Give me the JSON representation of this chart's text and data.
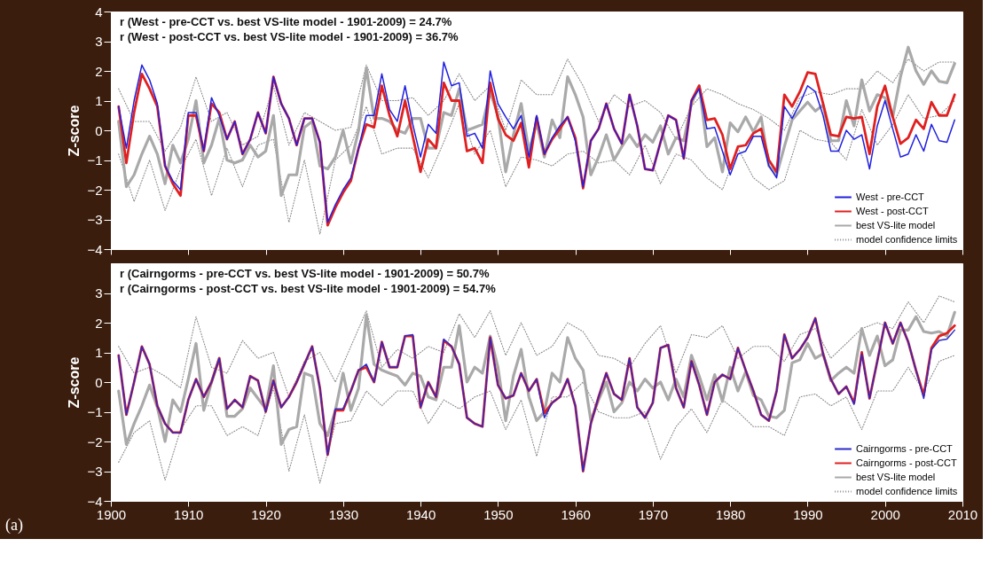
{
  "chart_data": [
    {
      "type": "line",
      "ylabel": "Z-score",
      "xlim": [
        1900,
        2010
      ],
      "xticks": [
        1900,
        1910,
        1920,
        1930,
        1940,
        1950,
        1960,
        1970,
        1980,
        1990,
        2000,
        2010
      ],
      "ylim": [
        -4,
        4
      ],
      "yticks": [
        -4,
        -3,
        -2,
        -1,
        0,
        1,
        2,
        3,
        4
      ],
      "tick_labels": "y",
      "legend": "bottom right",
      "grid": false,
      "annotations": [
        "r (West - pre-CCT vs. best VS-lite model - 1901-2009) = 24.7%",
        "r (West - post-CCT vs. best VS-lite model - 1901-2009) = 36.7%"
      ],
      "x": [
        1901,
        1902,
        1903,
        1904,
        1905,
        1906,
        1907,
        1908,
        1909,
        1910,
        1911,
        1912,
        1913,
        1914,
        1915,
        1916,
        1917,
        1918,
        1919,
        1920,
        1921,
        1922,
        1923,
        1924,
        1925,
        1926,
        1927,
        1928,
        1929,
        1930,
        1931,
        1932,
        1933,
        1934,
        1935,
        1936,
        1937,
        1938,
        1939,
        1940,
        1941,
        1942,
        1943,
        1944,
        1945,
        1946,
        1947,
        1948,
        1949,
        1950,
        1951,
        1952,
        1953,
        1954,
        1955,
        1956,
        1957,
        1958,
        1959,
        1960,
        1961,
        1962,
        1963,
        1964,
        1965,
        1966,
        1967,
        1968,
        1969,
        1970,
        1971,
        1972,
        1973,
        1974,
        1975,
        1976,
        1977,
        1978,
        1979,
        1980,
        1981,
        1982,
        1983,
        1984,
        1985,
        1986,
        1987,
        1988,
        1989,
        1990,
        1991,
        1992,
        1993,
        1994,
        1995,
        1996,
        1997,
        1998,
        1999,
        2000,
        2001,
        2002,
        2003,
        2004,
        2005,
        2006,
        2007,
        2008,
        2009
      ],
      "series": [
        {
          "name": "model confidence limits",
          "color": "#8a8a8a",
          "line_style": "dotted",
          "x": [
            1901,
            1903,
            1905,
            1907,
            1909,
            1911,
            1913,
            1915,
            1917,
            1919,
            1921,
            1923,
            1925,
            1927,
            1929,
            1931,
            1933,
            1935,
            1937,
            1939,
            1941,
            1943,
            1945,
            1947,
            1949,
            1951,
            1953,
            1955,
            1957,
            1959,
            1961,
            1963,
            1965,
            1967,
            1969,
            1971,
            1973,
            1975,
            1977,
            1979,
            1981,
            1983,
            1985,
            1987,
            1989,
            1991,
            1993,
            1995,
            1997,
            1999,
            2001,
            2003,
            2005,
            2007,
            2009
          ],
          "values": [
            1.4,
            0.3,
            0.3,
            -0.7,
            0.1,
            1.8,
            0.3,
            0.6,
            -0.5,
            -0.2,
            1.5,
            -0.5,
            0.6,
            0.3,
            0.0,
            0.1,
            2.2,
            1.0,
            1.0,
            1.1,
            0.5,
            1.0,
            1.9,
            1.0,
            1.5,
            0.0,
            1.7,
            1.2,
            1.2,
            2.4,
            1.5,
            0.3,
            1.2,
            0.8,
            1.0,
            0.6,
            -0.3,
            0.8,
            1.4,
            1.2,
            0.9,
            0.7,
            0.4,
            0.0,
            1.1,
            1.3,
            1.2,
            1.4,
            1.4,
            2.0,
            1.6,
            2.4,
            2.0,
            2.3,
            2.3
          ]
        },
        {
          "color": "#8a8a8a",
          "line_style": "dotted",
          "x": [
            1901,
            1903,
            1905,
            1907,
            1909,
            1911,
            1913,
            1915,
            1917,
            1919,
            1921,
            1923,
            1925,
            1927,
            1929,
            1931,
            1933,
            1935,
            1937,
            1939,
            1941,
            1943,
            1945,
            1947,
            1949,
            1951,
            1953,
            1955,
            1957,
            1959,
            1961,
            1963,
            1965,
            1967,
            1969,
            1971,
            1973,
            1975,
            1977,
            1979,
            1981,
            1983,
            1985,
            1987,
            1989,
            1991,
            1993,
            1995,
            1997,
            1999,
            2001,
            2003,
            2005,
            2007,
            2009
          ],
          "values": [
            -0.8,
            -2.4,
            -1.0,
            -2.7,
            -1.3,
            -0.3,
            -2.2,
            -0.6,
            -1.9,
            -0.5,
            -0.3,
            -3.1,
            -1.0,
            -3.5,
            -1.0,
            -0.5,
            0.8,
            -0.8,
            -0.6,
            -0.6,
            -1.6,
            -0.4,
            0.9,
            -0.8,
            0.0,
            -1.9,
            -0.9,
            -1.0,
            -1.2,
            -0.8,
            -0.7,
            -1.1,
            -1.0,
            -1.5,
            -0.5,
            -1.8,
            -0.8,
            -1.0,
            -1.6,
            -2.0,
            -0.6,
            -1.6,
            -2.0,
            -1.7,
            0.0,
            -0.3,
            -0.4,
            -1.0,
            0.7,
            -0.5,
            0.2,
            1.2,
            0.4,
            0.5,
            1.0
          ]
        },
        {
          "name": "best VS-lite model",
          "color": "#a9a9a9",
          "values": [
            0.3,
            -1.9,
            -1.5,
            -0.8,
            -0.2,
            -0.8,
            -1.8,
            -0.5,
            -1.1,
            -0.3,
            1.0,
            -1.1,
            -0.5,
            0.4,
            -1.0,
            -1.1,
            -1.0,
            -0.5,
            -0.9,
            -0.7,
            0.5,
            -2.2,
            -1.5,
            -1.5,
            0.1,
            0.3,
            -1.2,
            -1.3,
            -0.9,
            0.0,
            -1.1,
            0.0,
            2.1,
            0.4,
            0.4,
            0.3,
            0.0,
            -0.1,
            0.4,
            0.4,
            -0.6,
            -0.6,
            0.6,
            0.5,
            1.4,
            0.0,
            0.1,
            0.2,
            1.3,
            0.5,
            -1.4,
            -0.15,
            0.9,
            -0.7,
            0.25,
            -0.9,
            0.35,
            -0.25,
            1.8,
            1.2,
            0.45,
            -1.5,
            -0.9,
            -0.15,
            -1.0,
            -0.55,
            -0.15,
            -0.55,
            -0.15,
            -0.4,
            0.15,
            -0.8,
            -0.25,
            -0.35,
            0.9,
            1.5,
            -0.55,
            -0.25,
            -1.4,
            0.25,
            -0.05,
            0.45,
            -0.05,
            0.45,
            -1.2,
            -1.5,
            -0.55,
            0.35,
            0.65,
            0.95,
            0.65,
            0.85,
            -0.35,
            -0.35,
            1.0,
            0.15,
            1.7,
            0.65,
            1.2,
            1.1,
            0.45,
            1.8,
            2.8,
            2.0,
            1.55,
            2.0,
            1.65,
            1.6,
            2.25
          ]
        },
        {
          "name": "West - post-CCT",
          "color": "#e02020",
          "values": [
            0.8,
            -1.1,
            0.6,
            1.9,
            1.4,
            0.8,
            -1.2,
            -1.8,
            -2.2,
            0.5,
            0.5,
            -0.7,
            0.9,
            0.6,
            -0.3,
            0.3,
            -0.8,
            -0.3,
            0.6,
            -0.1,
            1.8,
            0.9,
            0.4,
            -0.5,
            0.4,
            0.4,
            -0.4,
            -3.2,
            -2.6,
            -2.1,
            -1.7,
            -0.6,
            0.2,
            0.1,
            1.5,
            0.5,
            -0.2,
            1.0,
            -0.2,
            -1.4,
            -0.3,
            -0.6,
            1.6,
            1.0,
            1.0,
            -0.7,
            -0.6,
            -1.1,
            1.6,
            0.4,
            -0.15,
            -0.35,
            0.25,
            -1.25,
            0.45,
            -0.8,
            -0.3,
            0.05,
            0.45,
            -0.25,
            -1.95,
            -0.35,
            0.05,
            0.9,
            0.05,
            -0.45,
            1.2,
            0.15,
            -1.3,
            -1.35,
            -0.4,
            0.5,
            0.35,
            -0.95,
            1.0,
            1.5,
            0.35,
            0.4,
            -0.15,
            -1.3,
            -0.55,
            -0.5,
            -0.1,
            0.05,
            -1.0,
            -1.4,
            1.2,
            0.8,
            1.3,
            1.95,
            1.9,
            0.9,
            -0.15,
            -0.2,
            0.45,
            0.4,
            0.45,
            -0.8,
            0.8,
            1.5,
            0.45,
            -0.45,
            -0.25,
            0.35,
            0.05,
            0.95,
            0.5,
            0.5,
            1.2
          ]
        },
        {
          "name": "West - pre-CCT",
          "color": "#2020e0",
          "values": [
            0.8,
            -0.6,
            1.0,
            2.2,
            1.7,
            0.9,
            -1.2,
            -1.7,
            -2.0,
            0.6,
            0.6,
            -0.7,
            1.1,
            0.5,
            -0.3,
            0.3,
            -0.8,
            -0.3,
            0.6,
            -0.1,
            1.8,
            0.9,
            0.4,
            -0.5,
            0.4,
            0.4,
            -0.4,
            -3.1,
            -2.5,
            -2.0,
            -1.6,
            -0.6,
            0.5,
            0.5,
            1.9,
            0.7,
            0.3,
            1.5,
            0.2,
            -0.9,
            0.2,
            -0.1,
            2.3,
            1.5,
            1.6,
            -0.2,
            -0.1,
            -0.6,
            2.0,
            0.9,
            0.45,
            0.05,
            0.5,
            -0.9,
            0.5,
            -0.8,
            -0.25,
            0.15,
            0.45,
            -0.35,
            -1.9,
            -0.35,
            0.05,
            0.9,
            0.05,
            -0.45,
            1.2,
            0.15,
            -1.3,
            -1.35,
            -0.4,
            0.5,
            0.35,
            -0.95,
            1.0,
            1.4,
            0.05,
            0.1,
            -0.7,
            -1.5,
            -0.8,
            -0.7,
            -0.2,
            -0.2,
            -1.2,
            -1.6,
            0.8,
            0.4,
            0.9,
            1.5,
            1.3,
            0.5,
            -0.7,
            -0.7,
            0.0,
            -0.3,
            -0.15,
            -1.3,
            0.15,
            1.0,
            0.05,
            -0.9,
            -0.8,
            -0.15,
            -0.7,
            0.2,
            -0.35,
            -0.4,
            0.35
          ]
        }
      ]
    },
    {
      "type": "line",
      "title": "(a)",
      "ylabel": "Z-score",
      "xlim": [
        1900,
        2010
      ],
      "xticks": [
        1900,
        1910,
        1920,
        1930,
        1940,
        1950,
        1960,
        1970,
        1980,
        1990,
        2000,
        2010
      ],
      "ylim": [
        -4,
        4
      ],
      "yticks": [
        -4,
        -3,
        -2,
        -1,
        0,
        1,
        2,
        3
      ],
      "legend": "bottom right",
      "grid": false,
      "annotations": [
        "r (Cairngorms - pre-CCT vs. best VS-lite model - 1901-2009) = 50.7%",
        "r (Cairngorms - post-CCT vs. best VS-lite model - 1901-2009) = 54.7%"
      ],
      "x": [
        1901,
        1902,
        1903,
        1904,
        1905,
        1906,
        1907,
        1908,
        1909,
        1910,
        1911,
        1912,
        1913,
        1914,
        1915,
        1916,
        1917,
        1918,
        1919,
        1920,
        1921,
        1922,
        1923,
        1924,
        1925,
        1926,
        1927,
        1928,
        1929,
        1930,
        1931,
        1932,
        1933,
        1934,
        1935,
        1936,
        1937,
        1938,
        1939,
        1940,
        1941,
        1942,
        1943,
        1944,
        1945,
        1946,
        1947,
        1948,
        1949,
        1950,
        1951,
        1952,
        1953,
        1954,
        1955,
        1956,
        1957,
        1958,
        1959,
        1960,
        1961,
        1962,
        1963,
        1964,
        1965,
        1966,
        1967,
        1968,
        1969,
        1970,
        1971,
        1972,
        1973,
        1974,
        1975,
        1976,
        1977,
        1978,
        1979,
        1980,
        1981,
        1982,
        1983,
        1984,
        1985,
        1986,
        1987,
        1988,
        1989,
        1990,
        1991,
        1992,
        1993,
        1994,
        1995,
        1996,
        1997,
        1998,
        1999,
        2000,
        2001,
        2002,
        2003,
        2004,
        2005,
        2006,
        2007,
        2008,
        2009
      ],
      "series": [
        {
          "name": "model confidence limits",
          "color": "#8a8a8a",
          "line_style": "dotted",
          "x": [
            1901,
            1903,
            1905,
            1907,
            1909,
            1911,
            1913,
            1915,
            1917,
            1919,
            1921,
            1923,
            1925,
            1927,
            1929,
            1931,
            1933,
            1935,
            1937,
            1939,
            1941,
            1943,
            1945,
            1947,
            1949,
            1951,
            1953,
            1955,
            1957,
            1959,
            1961,
            1963,
            1965,
            1967,
            1969,
            1971,
            1973,
            1975,
            1977,
            1979,
            1981,
            1983,
            1985,
            1987,
            1989,
            1991,
            1993,
            1995,
            1997,
            1999,
            2001,
            2003,
            2005,
            2007,
            2009
          ],
          "values": [
            1.2,
            0.3,
            0.5,
            0.2,
            -0.2,
            2.2,
            0.5,
            0.3,
            1.4,
            0.8,
            1.0,
            -0.5,
            0.7,
            1.0,
            0.0,
            1.2,
            2.4,
            0.5,
            1.1,
            0.8,
            1.2,
            1.0,
            2.3,
            1.5,
            2.4,
            0.9,
            2.0,
            0.9,
            1.2,
            2.0,
            1.7,
            0.9,
            0.8,
            0.5,
            1.3,
            1.9,
            0.3,
            1.6,
            1.5,
            1.9,
            0.8,
            1.2,
            1.2,
            0.7,
            1.6,
            1.8,
            0.8,
            1.3,
            1.8,
            2.0,
            1.8,
            2.7,
            2.0,
            2.9,
            2.7
          ]
        },
        {
          "color": "#8a8a8a",
          "line_style": "dotted",
          "x": [
            1901,
            1903,
            1905,
            1907,
            1909,
            1911,
            1913,
            1915,
            1917,
            1919,
            1921,
            1923,
            1925,
            1927,
            1929,
            1931,
            1933,
            1935,
            1937,
            1939,
            1941,
            1943,
            1945,
            1947,
            1949,
            1951,
            1953,
            1955,
            1957,
            1959,
            1961,
            1963,
            1965,
            1967,
            1969,
            1971,
            1973,
            1975,
            1977,
            1979,
            1981,
            1983,
            1985,
            1987,
            1989,
            1991,
            1993,
            1995,
            1997,
            1999,
            2001,
            2003,
            2005,
            2007,
            2009
          ],
          "values": [
            -2.7,
            -1.7,
            -1.3,
            -3.3,
            -1.6,
            -0.8,
            -0.8,
            -1.8,
            -1.5,
            -1.8,
            -0.2,
            -3.0,
            -1.1,
            -3.4,
            -1.4,
            -1.3,
            -0.3,
            -0.8,
            -0.3,
            -0.3,
            -1.4,
            -0.6,
            -0.9,
            -0.5,
            -0.3,
            -1.6,
            -0.6,
            -2.5,
            -0.5,
            -0.5,
            0.0,
            -1.0,
            -1.2,
            -1.2,
            -1.0,
            -2.6,
            -1.5,
            -0.9,
            -1.7,
            -0.6,
            -1.0,
            -1.5,
            -1.5,
            -1.8,
            -0.5,
            -0.4,
            -0.8,
            -0.5,
            -1.6,
            -0.3,
            -0.3,
            0.5,
            -0.3,
            0.7,
            0.9
          ]
        },
        {
          "name": "best VS-lite model",
          "color": "#a9a9a9",
          "values": [
            -0.3,
            -2.1,
            -1.4,
            -0.8,
            -0.1,
            -0.85,
            -2.0,
            -0.6,
            -1.0,
            0.1,
            1.3,
            -0.95,
            0.0,
            0.8,
            -1.15,
            -1.15,
            -0.9,
            -0.2,
            -0.55,
            -0.9,
            0.55,
            -2.1,
            -1.6,
            -1.5,
            0.3,
            0.2,
            -1.4,
            -1.8,
            -0.95,
            0.3,
            -0.95,
            -0.2,
            2.25,
            0.6,
            0.4,
            0.3,
            0.2,
            -0.1,
            0.3,
            0.2,
            -0.5,
            -0.6,
            0.5,
            0.5,
            1.9,
            0.0,
            0.5,
            0.3,
            1.55,
            0.5,
            -1.3,
            0.2,
            1.1,
            -0.5,
            -1.3,
            -1.0,
            0.3,
            0.0,
            1.5,
            0.8,
            0.4,
            -1.3,
            -0.6,
            0.0,
            -1.0,
            -0.7,
            0.0,
            -0.3,
            0.1,
            -0.2,
            0.0,
            -0.6,
            0.1,
            -0.5,
            0.9,
            0.2,
            -0.6,
            0.25,
            -0.65,
            0.5,
            -0.3,
            0.35,
            -0.45,
            -0.6,
            -1.15,
            -1.2,
            -0.95,
            0.65,
            0.75,
            1.3,
            0.8,
            0.95,
            0.05,
            0.3,
            0.5,
            0.3,
            1.8,
            0.9,
            1.55,
            0.55,
            0.75,
            1.75,
            1.75,
            2.2,
            1.7,
            1.65,
            1.7,
            1.55,
            2.35
          ]
        },
        {
          "name": "Cairngorms - post-CCT",
          "color": "#e02020",
          "values": [
            0.9,
            -1.1,
            0.0,
            1.2,
            0.6,
            -0.8,
            -1.4,
            -1.7,
            -1.7,
            -0.6,
            0.1,
            -0.5,
            0.0,
            0.8,
            -0.9,
            -0.6,
            -0.85,
            0.2,
            0.05,
            -1.0,
            0.05,
            -0.85,
            -0.5,
            0.0,
            0.6,
            1.2,
            -0.2,
            -2.45,
            -0.95,
            -0.95,
            -0.3,
            0.4,
            0.5,
            0.0,
            1.35,
            0.5,
            0.5,
            1.55,
            1.55,
            -0.85,
            0.0,
            -0.5,
            1.4,
            1.2,
            0.6,
            -1.2,
            -1.4,
            -1.5,
            1.5,
            -0.1,
            -0.55,
            -0.45,
            0.3,
            -0.3,
            0.1,
            -1.05,
            -0.7,
            -0.5,
            0.1,
            -0.8,
            -3.0,
            -1.4,
            -0.5,
            0.3,
            -0.4,
            -0.6,
            0.8,
            -0.85,
            -1.2,
            -0.7,
            1.15,
            1.25,
            -0.2,
            -0.85,
            0.7,
            -0.1,
            -1.1,
            0.0,
            0.25,
            0.1,
            1.15,
            0.4,
            -0.3,
            -1.1,
            -1.3,
            -0.3,
            1.6,
            0.8,
            1.1,
            1.5,
            2.15,
            0.95,
            0.1,
            -0.4,
            -0.15,
            -0.7,
            1.0,
            -0.55,
            0.7,
            2.0,
            1.3,
            2.0,
            1.35,
            0.4,
            -0.45,
            1.15,
            1.55,
            1.65,
            1.9
          ]
        },
        {
          "name": "Cairngorms - pre-CCT",
          "color": "#2a2ac8",
          "values": [
            0.9,
            -1.1,
            0.0,
            1.2,
            0.6,
            -0.8,
            -1.4,
            -1.7,
            -1.7,
            -0.6,
            0.1,
            -0.5,
            0.0,
            0.8,
            -0.9,
            -0.6,
            -0.85,
            0.2,
            0.05,
            -1.0,
            0.05,
            -0.85,
            -0.5,
            0.0,
            0.6,
            1.2,
            -0.2,
            -2.45,
            -0.9,
            -0.9,
            -0.3,
            0.4,
            0.6,
            0.0,
            1.35,
            0.5,
            0.5,
            1.55,
            1.6,
            -0.85,
            0.0,
            -0.5,
            1.45,
            1.2,
            0.6,
            -1.2,
            -1.4,
            -1.5,
            1.5,
            -0.1,
            -0.55,
            -0.45,
            0.3,
            -0.3,
            0.1,
            -1.2,
            -0.7,
            -0.5,
            0.1,
            -0.8,
            -3.0,
            -1.4,
            -0.5,
            0.3,
            -0.4,
            -0.6,
            0.8,
            -0.85,
            -1.2,
            -0.7,
            1.15,
            1.25,
            -0.2,
            -0.85,
            0.7,
            -0.1,
            -1.1,
            0.0,
            0.25,
            0.1,
            1.15,
            0.4,
            -0.3,
            -1.1,
            -1.3,
            -0.3,
            1.6,
            0.8,
            1.1,
            1.5,
            2.15,
            0.95,
            0.1,
            -0.4,
            -0.15,
            -0.75,
            0.95,
            -0.55,
            0.7,
            2.0,
            1.3,
            2.0,
            1.35,
            0.4,
            -0.55,
            1.1,
            1.4,
            1.45,
            1.75
          ]
        }
      ]
    }
  ]
}
